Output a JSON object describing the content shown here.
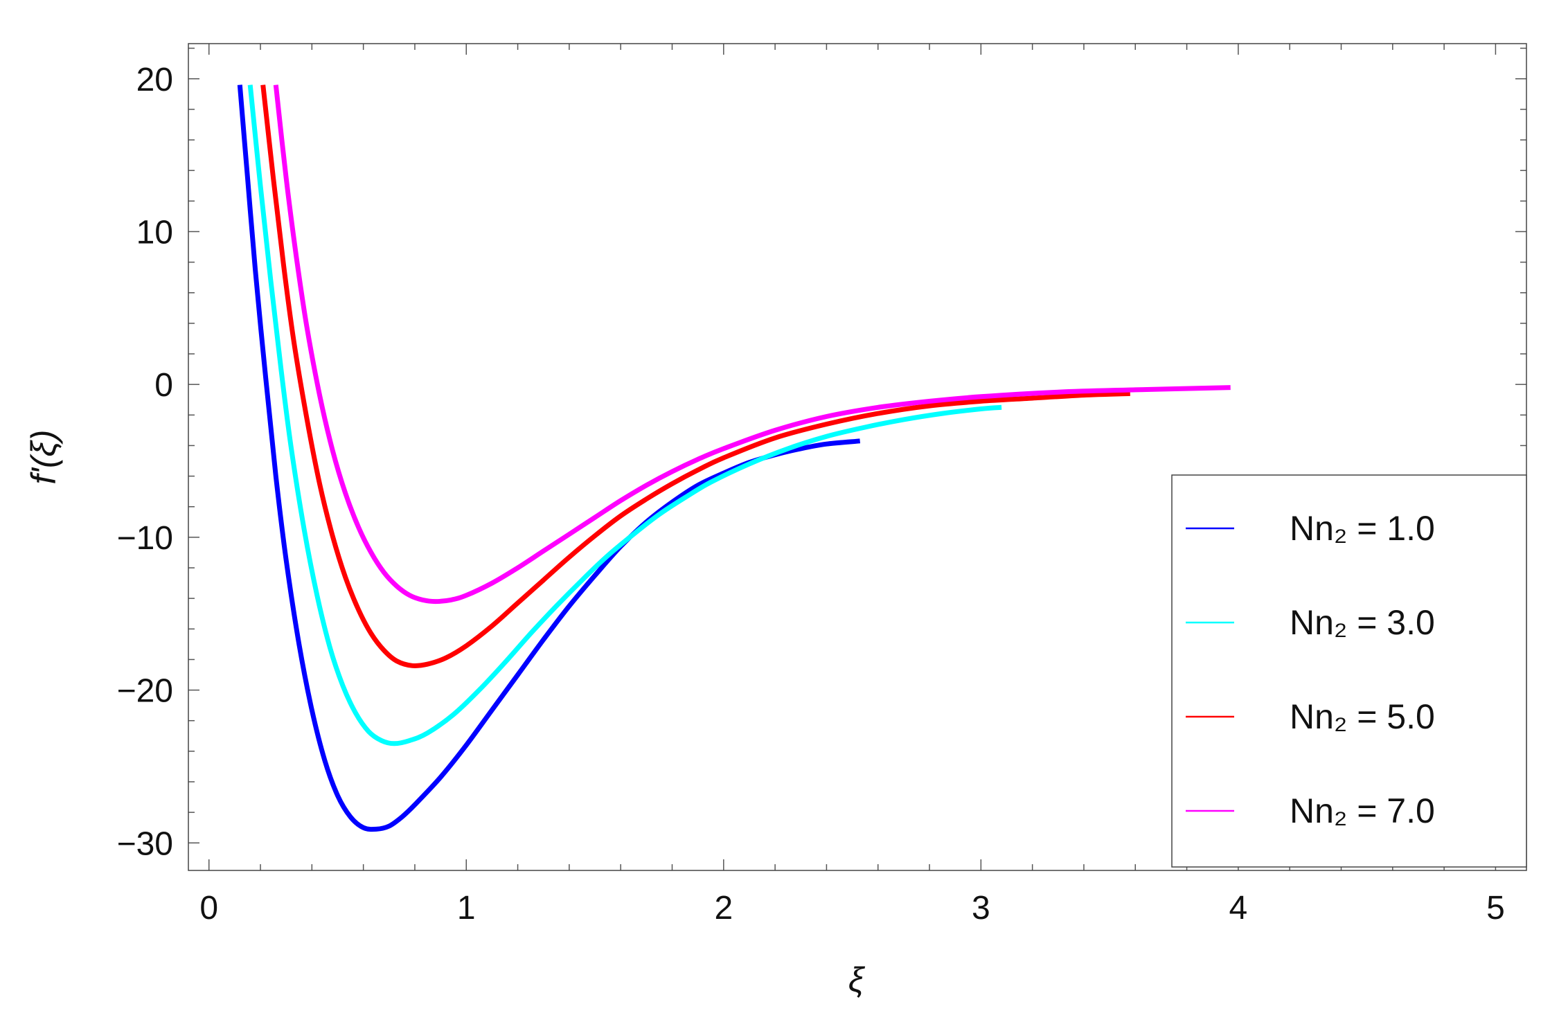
{
  "chart_data": {
    "type": "line",
    "title": "",
    "xlabel": "ξ",
    "ylabel": "f'(ξ)",
    "xlim": [
      -0.08,
      5.12
    ],
    "ylim": [
      -31.8,
      22.3
    ],
    "x_ticks": [
      "0",
      "1",
      "2",
      "3",
      "4",
      "5"
    ],
    "y_ticks": [
      "20",
      "10",
      "0",
      "−10",
      "−20",
      "−30"
    ],
    "grid": false,
    "frame": true,
    "legend_position": "bottom-right",
    "series": [
      {
        "name": "Nn₂ = 1.0",
        "color": "#0000ff",
        "x": [
          0.12,
          0.15,
          0.18,
          0.22,
          0.26,
          0.3,
          0.35,
          0.4,
          0.45,
          0.5,
          0.55,
          0.6,
          0.65,
          0.7,
          0.75,
          0.8,
          0.9,
          1.0,
          1.1,
          1.2,
          1.3,
          1.4,
          1.5,
          1.6,
          1.7,
          1.8,
          1.9,
          2.0,
          2.1,
          2.2,
          2.3,
          2.4,
          2.53
        ],
        "y": [
          19.6,
          13.5,
          7.5,
          0.5,
          -6.0,
          -11.5,
          -17.0,
          -21.3,
          -24.6,
          -26.9,
          -28.3,
          -29.0,
          -29.1,
          -28.9,
          -28.3,
          -27.5,
          -25.7,
          -23.6,
          -21.3,
          -19.0,
          -16.7,
          -14.5,
          -12.5,
          -10.6,
          -9.0,
          -7.7,
          -6.6,
          -5.8,
          -5.1,
          -4.6,
          -4.2,
          -3.9,
          -3.7
        ]
      },
      {
        "name": "Nn₂ = 3.0",
        "color": "#00ffff",
        "x": [
          0.16,
          0.2,
          0.24,
          0.28,
          0.32,
          0.37,
          0.42,
          0.47,
          0.52,
          0.57,
          0.62,
          0.67,
          0.72,
          0.78,
          0.85,
          0.95,
          1.05,
          1.15,
          1.25,
          1.35,
          1.45,
          1.55,
          1.65,
          1.75,
          1.85,
          1.95,
          2.1,
          2.25,
          2.4,
          2.55,
          2.7,
          2.85,
          3.0,
          3.08
        ],
        "y": [
          19.6,
          13.0,
          6.8,
          1.0,
          -4.2,
          -9.5,
          -13.8,
          -17.2,
          -19.7,
          -21.5,
          -22.7,
          -23.3,
          -23.5,
          -23.3,
          -22.8,
          -21.6,
          -20.0,
          -18.2,
          -16.3,
          -14.5,
          -12.8,
          -11.2,
          -9.8,
          -8.5,
          -7.4,
          -6.4,
          -5.2,
          -4.2,
          -3.4,
          -2.8,
          -2.3,
          -1.9,
          -1.6,
          -1.5
        ]
      },
      {
        "name": "Nn₂ = 5.0",
        "color": "#ff0000",
        "x": [
          0.21,
          0.25,
          0.29,
          0.33,
          0.38,
          0.43,
          0.48,
          0.53,
          0.58,
          0.63,
          0.68,
          0.73,
          0.79,
          0.85,
          0.92,
          1.0,
          1.1,
          1.2,
          1.3,
          1.4,
          1.5,
          1.6,
          1.7,
          1.8,
          1.9,
          2.0,
          2.2,
          2.4,
          2.6,
          2.8,
          3.0,
          3.2,
          3.4,
          3.58
        ],
        "y": [
          19.6,
          13.5,
          7.8,
          2.8,
          -2.2,
          -6.5,
          -9.9,
          -12.6,
          -14.7,
          -16.3,
          -17.4,
          -18.1,
          -18.4,
          -18.3,
          -17.9,
          -17.1,
          -15.8,
          -14.3,
          -12.8,
          -11.3,
          -9.9,
          -8.6,
          -7.5,
          -6.5,
          -5.6,
          -4.8,
          -3.5,
          -2.6,
          -1.9,
          -1.4,
          -1.1,
          -0.9,
          -0.7,
          -0.6
        ]
      },
      {
        "name": "Nn₂ = 7.0",
        "color": "#ff00ff",
        "x": [
          0.26,
          0.3,
          0.34,
          0.38,
          0.43,
          0.48,
          0.53,
          0.58,
          0.63,
          0.68,
          0.73,
          0.78,
          0.83,
          0.88,
          0.94,
          1.0,
          1.1,
          1.2,
          1.3,
          1.4,
          1.5,
          1.6,
          1.7,
          1.8,
          1.9,
          2.0,
          2.2,
          2.4,
          2.6,
          2.8,
          3.0,
          3.3,
          3.6,
          3.97
        ],
        "y": [
          19.6,
          13.5,
          8.3,
          3.8,
          -0.7,
          -4.3,
          -7.1,
          -9.3,
          -11.0,
          -12.3,
          -13.2,
          -13.8,
          -14.1,
          -14.2,
          -14.1,
          -13.8,
          -13.0,
          -12.0,
          -10.9,
          -9.8,
          -8.7,
          -7.6,
          -6.6,
          -5.7,
          -4.9,
          -4.2,
          -3.0,
          -2.1,
          -1.5,
          -1.1,
          -0.8,
          -0.5,
          -0.35,
          -0.2
        ]
      }
    ]
  }
}
